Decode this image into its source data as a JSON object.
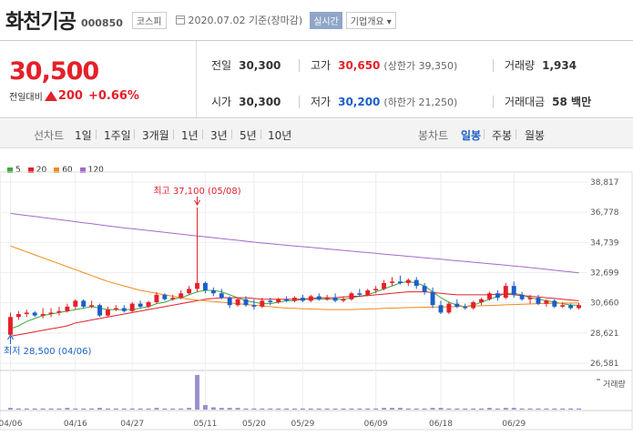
{
  "header": {
    "title": "화천기공",
    "code": "000850",
    "market": "코스피",
    "date_info": "2020.07.02  기준(장마감)",
    "realtime_label": "실시간",
    "corp_info_label": "기업개요"
  },
  "price": {
    "current": "30,500",
    "change_label": "전일대비",
    "change": "200",
    "change_pct": "+0.66%"
  },
  "stats": {
    "prev_label": "전일",
    "prev": "30,300",
    "high_label": "고가",
    "high": "30,650",
    "upper_limit": "(상한가 39,350)",
    "volume_label": "거래량",
    "volume": "1,934",
    "open_label": "시가",
    "open": "30,300",
    "low_label": "저가",
    "low": "30,200",
    "lower_limit": "(하한가 21,250)",
    "amount_label": "거래대금",
    "amount": "58 백만"
  },
  "tabs": {
    "line_chart": "선차트",
    "periods": [
      "1일",
      "1주일",
      "3개월",
      "1년",
      "3년",
      "5년",
      "10년"
    ],
    "candle_chart": "봉차트",
    "candle_periods": [
      "일봉",
      "주봉",
      "월봉"
    ],
    "active": "일봉"
  },
  "colors": {
    "up": "#e4202a",
    "down": "#1a5fc9",
    "ma5": "#3fa83f",
    "ma20": "#e4202a",
    "ma60": "#f08a1c",
    "ma120": "#a569c9",
    "volume": "#9b8fce"
  },
  "chart_data": {
    "type": "candlestick",
    "legend": [
      "5",
      "20",
      "60",
      "120"
    ],
    "legend_position": "top-left",
    "ylim": [
      26581,
      38817
    ],
    "yticks": [
      "38,817",
      "36,778",
      "34,739",
      "32,699",
      "30,660",
      "28,621",
      "26,581"
    ],
    "xticks": [
      "04/06",
      "04/16",
      "04/27",
      "05/11",
      "05/20",
      "05/29",
      "06/09",
      "06/18",
      "06/29"
    ],
    "max_annotation": "최고 37,100 (05/08)",
    "min_annotation": "최저 28,500 (04/06)",
    "volume_label": "거래량",
    "candles": [
      {
        "o": 28500,
        "h": 30000,
        "l": 28500,
        "c": 29700
      },
      {
        "o": 29700,
        "h": 30100,
        "l": 29500,
        "c": 29900
      },
      {
        "o": 29900,
        "h": 30200,
        "l": 29700,
        "c": 30000
      },
      {
        "o": 30000,
        "h": 30100,
        "l": 29700,
        "c": 29800
      },
      {
        "o": 29800,
        "h": 30300,
        "l": 29600,
        "c": 29900
      },
      {
        "o": 29900,
        "h": 30300,
        "l": 29700,
        "c": 30000
      },
      {
        "o": 30000,
        "h": 30400,
        "l": 29800,
        "c": 30100
      },
      {
        "o": 30100,
        "h": 30600,
        "l": 30000,
        "c": 30400
      },
      {
        "o": 30400,
        "h": 30900,
        "l": 30200,
        "c": 30800
      },
      {
        "o": 30800,
        "h": 30900,
        "l": 30300,
        "c": 30400
      },
      {
        "o": 30400,
        "h": 30800,
        "l": 30300,
        "c": 30500
      },
      {
        "o": 30500,
        "h": 30600,
        "l": 29700,
        "c": 29800
      },
      {
        "o": 29800,
        "h": 30400,
        "l": 29700,
        "c": 30200
      },
      {
        "o": 30200,
        "h": 30500,
        "l": 30100,
        "c": 30300
      },
      {
        "o": 30300,
        "h": 30500,
        "l": 30000,
        "c": 30100
      },
      {
        "o": 30100,
        "h": 30700,
        "l": 30000,
        "c": 30600
      },
      {
        "o": 30600,
        "h": 30800,
        "l": 30300,
        "c": 30400
      },
      {
        "o": 30400,
        "h": 30800,
        "l": 30300,
        "c": 30700
      },
      {
        "o": 30700,
        "h": 31400,
        "l": 30600,
        "c": 31200
      },
      {
        "o": 31200,
        "h": 31300,
        "l": 30800,
        "c": 30900
      },
      {
        "o": 30900,
        "h": 31200,
        "l": 30800,
        "c": 31000
      },
      {
        "o": 31000,
        "h": 31500,
        "l": 30900,
        "c": 31300
      },
      {
        "o": 31300,
        "h": 31800,
        "l": 31200,
        "c": 31600
      },
      {
        "o": 31600,
        "h": 37100,
        "l": 31400,
        "c": 32000
      },
      {
        "o": 32000,
        "h": 32100,
        "l": 31300,
        "c": 31500
      },
      {
        "o": 31500,
        "h": 31700,
        "l": 31100,
        "c": 31300
      },
      {
        "o": 31300,
        "h": 31600,
        "l": 30900,
        "c": 31000
      },
      {
        "o": 31000,
        "h": 31100,
        "l": 30300,
        "c": 30500
      },
      {
        "o": 30500,
        "h": 31000,
        "l": 30400,
        "c": 30900
      },
      {
        "o": 30900,
        "h": 31100,
        "l": 30400,
        "c": 30500
      },
      {
        "o": 30500,
        "h": 30900,
        "l": 30200,
        "c": 30400
      },
      {
        "o": 30400,
        "h": 31000,
        "l": 30300,
        "c": 30800
      },
      {
        "o": 30800,
        "h": 31000,
        "l": 30500,
        "c": 30700
      },
      {
        "o": 30700,
        "h": 31000,
        "l": 30600,
        "c": 30900
      },
      {
        "o": 30900,
        "h": 31100,
        "l": 30700,
        "c": 30800
      },
      {
        "o": 30800,
        "h": 31100,
        "l": 30700,
        "c": 31000
      },
      {
        "o": 31000,
        "h": 31200,
        "l": 30700,
        "c": 30800
      },
      {
        "o": 30800,
        "h": 31200,
        "l": 30700,
        "c": 31100
      },
      {
        "o": 31100,
        "h": 31300,
        "l": 30800,
        "c": 30900
      },
      {
        "o": 30900,
        "h": 31200,
        "l": 30800,
        "c": 31000
      },
      {
        "o": 31000,
        "h": 31300,
        "l": 30700,
        "c": 30800
      },
      {
        "o": 30800,
        "h": 31100,
        "l": 30700,
        "c": 30900
      },
      {
        "o": 30900,
        "h": 31400,
        "l": 30800,
        "c": 31300
      },
      {
        "o": 31300,
        "h": 31600,
        "l": 31100,
        "c": 31200
      },
      {
        "o": 31200,
        "h": 31600,
        "l": 31100,
        "c": 31500
      },
      {
        "o": 31500,
        "h": 31800,
        "l": 31300,
        "c": 31600
      },
      {
        "o": 31600,
        "h": 32200,
        "l": 31500,
        "c": 32000
      },
      {
        "o": 32000,
        "h": 32400,
        "l": 31800,
        "c": 32100
      },
      {
        "o": 32100,
        "h": 32500,
        "l": 31900,
        "c": 32000
      },
      {
        "o": 32000,
        "h": 32300,
        "l": 31800,
        "c": 32200
      },
      {
        "o": 32200,
        "h": 32400,
        "l": 31600,
        "c": 31800
      },
      {
        "o": 31800,
        "h": 32000,
        "l": 31200,
        "c": 31400
      },
      {
        "o": 31400,
        "h": 31700,
        "l": 30300,
        "c": 30500
      },
      {
        "o": 30500,
        "h": 30800,
        "l": 29900,
        "c": 30000
      },
      {
        "o": 30000,
        "h": 30700,
        "l": 29900,
        "c": 30600
      },
      {
        "o": 30600,
        "h": 30900,
        "l": 30300,
        "c": 30400
      },
      {
        "o": 30400,
        "h": 30600,
        "l": 30200,
        "c": 30300
      },
      {
        "o": 30300,
        "h": 30800,
        "l": 30200,
        "c": 30700
      },
      {
        "o": 30700,
        "h": 31000,
        "l": 30500,
        "c": 30900
      },
      {
        "o": 30900,
        "h": 31400,
        "l": 30800,
        "c": 31300
      },
      {
        "o": 31300,
        "h": 31500,
        "l": 30800,
        "c": 31000
      },
      {
        "o": 31000,
        "h": 32000,
        "l": 30900,
        "c": 31800
      },
      {
        "o": 31800,
        "h": 32100,
        "l": 31000,
        "c": 31200
      },
      {
        "o": 31200,
        "h": 31400,
        "l": 30800,
        "c": 30900
      },
      {
        "o": 30900,
        "h": 31200,
        "l": 30600,
        "c": 31000
      },
      {
        "o": 31000,
        "h": 31200,
        "l": 30500,
        "c": 30600
      },
      {
        "o": 30600,
        "h": 30900,
        "l": 30400,
        "c": 30800
      },
      {
        "o": 30800,
        "h": 30900,
        "l": 30300,
        "c": 30400
      },
      {
        "o": 30400,
        "h": 30700,
        "l": 30300,
        "c": 30500
      },
      {
        "o": 30500,
        "h": 30600,
        "l": 30200,
        "c": 30300
      },
      {
        "o": 30300,
        "h": 30650,
        "l": 30200,
        "c": 30500
      }
    ],
    "volumes": [
      3,
      2,
      2,
      2,
      2,
      2,
      2,
      3,
      2,
      2,
      2,
      3,
      2,
      2,
      2,
      2,
      2,
      2,
      3,
      2,
      2,
      2,
      3,
      60,
      8,
      4,
      3,
      3,
      3,
      2,
      2,
      2,
      2,
      2,
      2,
      2,
      2,
      2,
      2,
      2,
      2,
      2,
      2,
      2,
      2,
      2,
      3,
      3,
      3,
      2,
      2,
      2,
      3,
      3,
      2,
      2,
      2,
      2,
      2,
      3,
      2,
      3,
      3,
      2,
      2,
      2,
      2,
      2,
      2,
      2,
      2
    ],
    "series": [
      {
        "name": "5",
        "values": [
          28900,
          29100,
          29400,
          29600,
          29800,
          29900,
          30000,
          30100,
          30200,
          30300,
          30400,
          30300,
          30200,
          30200,
          30200,
          30200,
          30300,
          30400,
          30600,
          30700,
          30900,
          31000,
          31200,
          31400,
          31500,
          31500,
          31400,
          31200,
          31000,
          30800,
          30700,
          30600,
          30600,
          30700,
          30800,
          30800,
          30900,
          30900,
          30900,
          30900,
          30900,
          30900,
          31000,
          31100,
          31200,
          31400,
          31600,
          31800,
          32000,
          32100,
          32000,
          31800,
          31400,
          31000,
          30700,
          30500,
          30400,
          30500,
          30700,
          30900,
          31100,
          31300,
          31300,
          31200,
          31000,
          30900,
          30800,
          30700,
          30600,
          30500,
          30500
        ]
      },
      {
        "name": "20",
        "values": [
          28400,
          28500,
          28600,
          28700,
          28800,
          28900,
          29000,
          29100,
          29300,
          29400,
          29500,
          29600,
          29700,
          29800,
          29900,
          30000,
          30100,
          30200,
          30300,
          30400,
          30500,
          30600,
          30700,
          30800,
          30900,
          30950,
          31000,
          31000,
          31000,
          31000,
          30950,
          30900,
          30900,
          30900,
          30900,
          30900,
          30900,
          30950,
          31000,
          31000,
          31000,
          31050,
          31100,
          31100,
          31150,
          31200,
          31250,
          31300,
          31350,
          31400,
          31400,
          31400,
          31350,
          31300,
          31250,
          31200,
          31200,
          31200,
          31200,
          31200,
          31250,
          31250,
          31200,
          31150,
          31100,
          31050,
          31000,
          30950,
          30900,
          30850,
          30800
        ]
      },
      {
        "name": "60",
        "values": [
          34500,
          34300,
          34100,
          33900,
          33700,
          33500,
          33300,
          33100,
          32900,
          32700,
          32500,
          32300,
          32100,
          31950,
          31800,
          31650,
          31500,
          31400,
          31300,
          31200,
          31100,
          31000,
          30900,
          30850,
          30800,
          30750,
          30700,
          30650,
          30600,
          30550,
          30500,
          30450,
          30400,
          30350,
          30300,
          30280,
          30260,
          30240,
          30220,
          30200,
          30200,
          30200,
          30200,
          30220,
          30240,
          30260,
          30280,
          30300,
          30320,
          30340,
          30350,
          30360,
          30370,
          30380,
          30390,
          30400,
          30420,
          30440,
          30460,
          30480,
          30500,
          30520,
          30540,
          30560,
          30580,
          30600,
          30610,
          30620,
          30630,
          30640,
          30650
        ]
      },
      {
        "name": "120",
        "values": [
          36700,
          36630,
          36560,
          36490,
          36420,
          36350,
          36280,
          36210,
          36140,
          36070,
          36000,
          35930,
          35860,
          35790,
          35720,
          35660,
          35600,
          35540,
          35480,
          35420,
          35360,
          35300,
          35240,
          35180,
          35120,
          35060,
          35000,
          34940,
          34880,
          34820,
          34760,
          34700,
          34650,
          34600,
          34550,
          34500,
          34450,
          34400,
          34350,
          34300,
          34250,
          34200,
          34150,
          34100,
          34050,
          34000,
          33950,
          33900,
          33850,
          33800,
          33750,
          33700,
          33650,
          33600,
          33550,
          33500,
          33450,
          33400,
          33350,
          33300,
          33250,
          33200,
          33150,
          33100,
          33040,
          32980,
          32920,
          32860,
          32800,
          32740,
          32680
        ]
      }
    ]
  }
}
